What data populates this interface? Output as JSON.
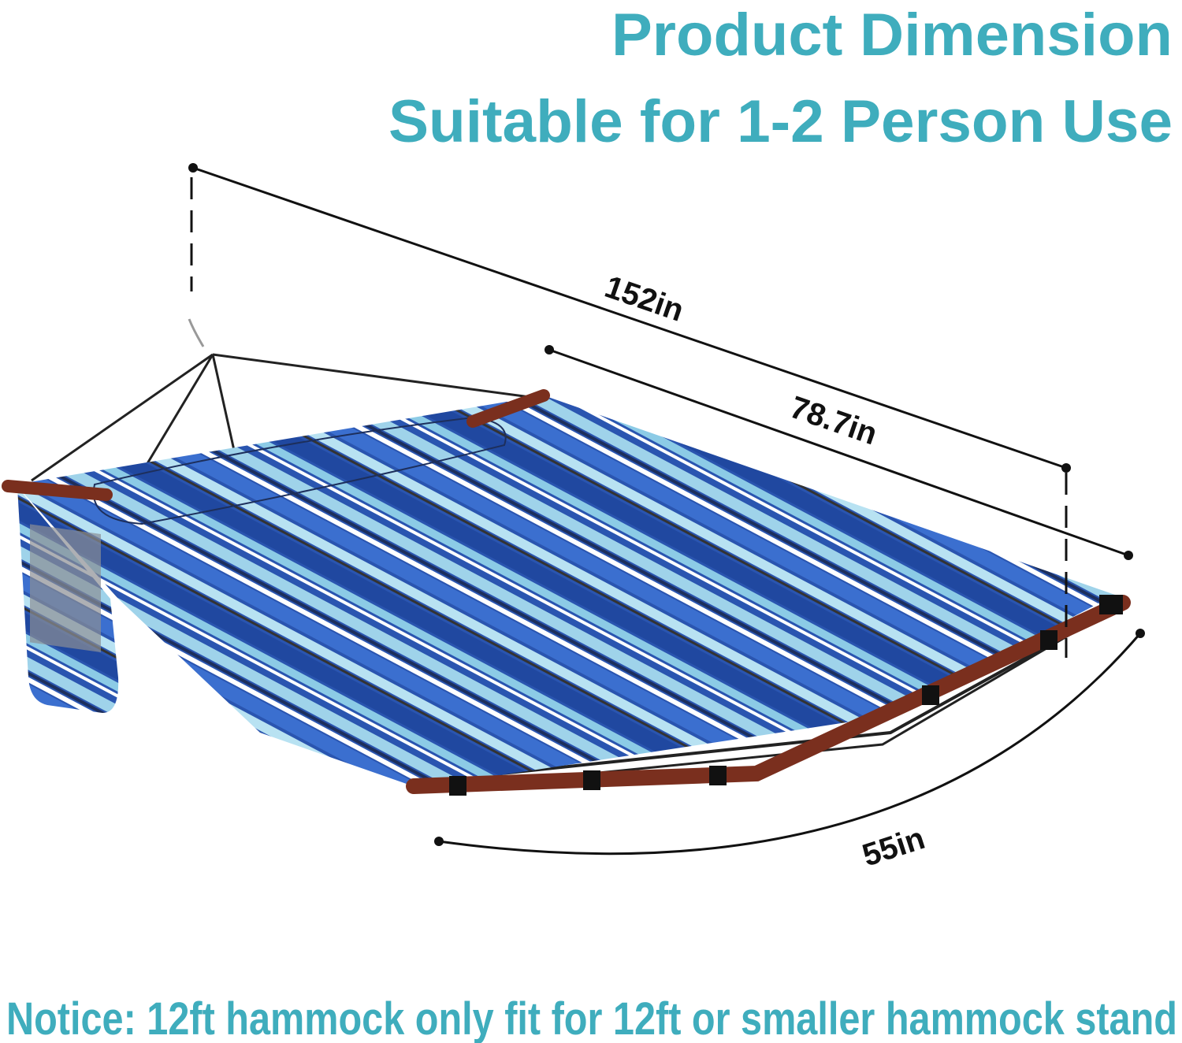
{
  "header": {
    "title": "Product Dimension",
    "subtitle": "Suitable for 1-2 Person Use"
  },
  "dimensions": {
    "total_length": "152in",
    "bed_length": "78.7in",
    "width": "55in"
  },
  "footer": {
    "notice": "Notice: 12ft hammock only fit for 12ft or smaller hammock stand"
  },
  "colors": {
    "heading": "#3fadbd",
    "stripe_dark_blue": "#2a55b0",
    "stripe_light_blue": "#9fd3ea",
    "stripe_navy": "#1d2f5c",
    "spreader_bar": "#7a2f1e"
  }
}
